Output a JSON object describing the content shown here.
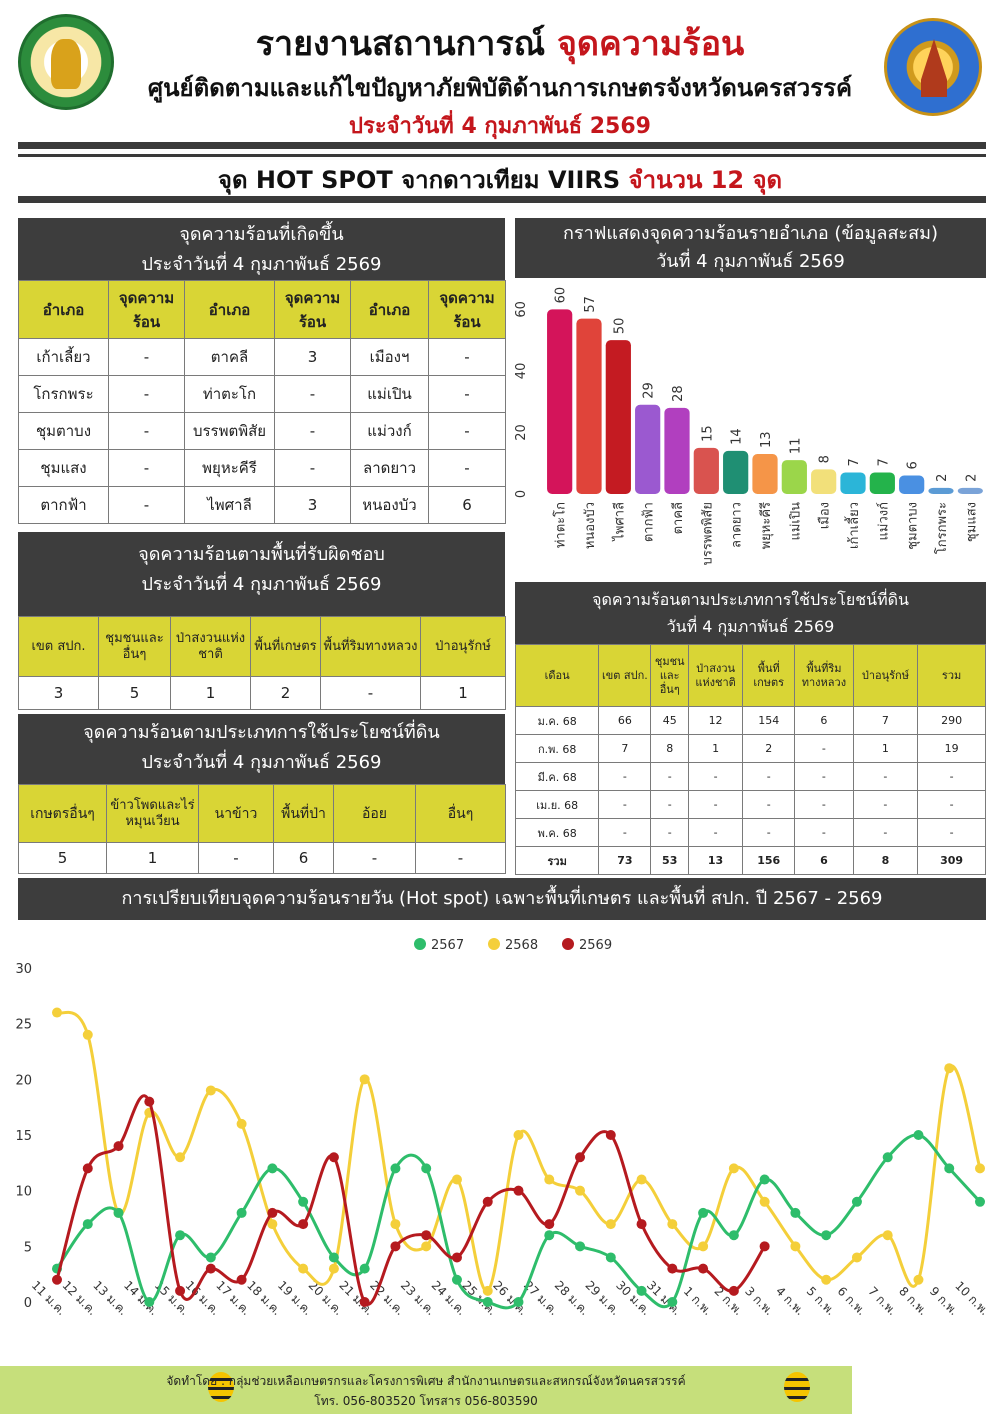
{
  "header": {
    "title_main": "รายงานสถานการณ์ ",
    "title_red": "จุดความร้อน",
    "subtitle": "ศูนย์ติดตามและแก้ไขปัญหาภัยพิบัติด้านการเกษตรจังหวัดนครสวรรค์",
    "date_line": "ประจำวันที่ 4 กุมภาพันธ์ 2569",
    "banner_main": "จุด HOT SPOT จากดาวเทียม VIIRS ",
    "banner_red": "จำนวน 12 จุด"
  },
  "colors": {
    "section_header": "#3d3d3d",
    "table_header": "#d9d535",
    "accent_red": "#c4161c",
    "footer": "#c6df7b"
  },
  "district_table": {
    "title_line1": "จุดความร้อนที่เกิดขึ้น",
    "title_line2": "ประจำวันที่ 4 กุมภาพันธ์ 2569",
    "headers": [
      "อำเภอ",
      "จุดความร้อน",
      "อำเภอ",
      "จุดความร้อน",
      "อำเภอ",
      "จุดความร้อน"
    ],
    "rows": [
      [
        "เก้าเลี้ยว",
        "-",
        "ตาคลี",
        "3",
        "เมืองฯ",
        "-"
      ],
      [
        "โกรกพระ",
        "-",
        "ท่าตะโก",
        "-",
        "แม่เปิน",
        "-"
      ],
      [
        "ชุมตาบง",
        "-",
        "บรรพตพิสัย",
        "-",
        "แม่วงก์",
        "-"
      ],
      [
        "ชุมแสง",
        "-",
        "พยุหะคีรี",
        "-",
        "ลาดยาว",
        "-"
      ],
      [
        "ตากฟ้า",
        "-",
        "ไพศาลี",
        "3",
        "หนองบัว",
        "6"
      ]
    ]
  },
  "area_table": {
    "title_line1": "จุดความร้อนตามพื้นที่รับผิดชอบ",
    "title_line2": "ประจำวันที่ 4 กุมภาพันธ์ 2569",
    "headers": [
      "เขต สปก.",
      "ชุมชนและอื่นๆ",
      "ป่าสงวนแห่งชาติ",
      "พื้นที่เกษตร",
      "พื้นที่ริมทางหลวง",
      "ป่าอนุรักษ์"
    ],
    "values": [
      "3",
      "5",
      "1",
      "2",
      "-",
      "1"
    ]
  },
  "landuse_table": {
    "title_line1": "จุดความร้อนตามประเภทการใช้ประโยชน์ที่ดิน",
    "title_line2": "ประจำวันที่ 4 กุมภาพันธ์ 2569",
    "headers": [
      "เกษตรอื่นๆ",
      "ข้าวโพดและไร่หมุนเวียน",
      "นาข้าว",
      "พื้นที่ป่า",
      "อ้อย",
      "อื่นๆ"
    ],
    "values": [
      "5",
      "1",
      "-",
      "6",
      "-",
      "-"
    ]
  },
  "bar_title": {
    "line1": "กราฟแสดงจุดความร้อนรายอำเภอ (ข้อมูลสะสม)",
    "line2": "วันที่ 4 กุมภาพันธ์ 2569"
  },
  "monthly_table": {
    "title_line1": "จุดความร้อนตามประเภทการใช้ประโยชน์ที่ดิน",
    "title_line2": "วันที่ 4 กุมภาพันธ์  2569",
    "headers": [
      "เดือน",
      "เขต สปก.",
      "ชุมชนและอื่นๆ",
      "ป่าสงวนแห่งชาติ",
      "พื้นที่เกษตร",
      "พื้นที่ริมทางหลวง",
      "ป่าอนุรักษ์",
      "รวม"
    ],
    "rows": [
      [
        "ม.ค. 68",
        "66",
        "45",
        "12",
        "154",
        "6",
        "7",
        "290"
      ],
      [
        "ก.พ. 68",
        "7",
        "8",
        "1",
        "2",
        "-",
        "1",
        "19"
      ],
      [
        "มี.ค. 68",
        "-",
        "-",
        "-",
        "-",
        "-",
        "-",
        "-"
      ],
      [
        "เม.ย. 68",
        "-",
        "-",
        "-",
        "-",
        "-",
        "-",
        "-"
      ],
      [
        "พ.ค. 68",
        "-",
        "-",
        "-",
        "-",
        "-",
        "-",
        "-"
      ]
    ],
    "total": [
      "รวม",
      "73",
      "53",
      "13",
      "156",
      "6",
      "8",
      "309"
    ]
  },
  "line_title": "การเปรียบเทียบจุดความร้อนรายวัน (Hot spot)  เฉพาะพื้นที่เกษตร และพื้นที่ สปก. ปี 2567 - 2569",
  "footer": {
    "line1": "จัดทำโดย : กลุ่มช่วยเหลือเกษตรกรและโครงการพิเศษ สำนักงานเกษตรและสหกรณ์จังหวัดนครสวรรค์",
    "line2": "โทร. 056-803520 โทรสาร 056-803590"
  },
  "chart_data": [
    {
      "type": "bar",
      "title": "กราฟแสดงจุดความร้อนรายอำเภอ (ข้อมูลสะสม)",
      "categories": [
        "ท่าตะโก",
        "หนองบัว",
        "ไพศาลี",
        "ตากฟ้า",
        "ตาคลี",
        "บรรพตพิสัย",
        "ลาดยาว",
        "พยุหะคีรี",
        "แม่เปิน",
        "เมือง",
        "เก้าเลี้ยว",
        "แม่วงก์",
        "ชุมตาบง",
        "โกรกพระ",
        "ชุมแสง"
      ],
      "values": [
        60,
        57,
        50,
        29,
        28,
        15,
        14,
        13,
        11,
        8,
        7,
        7,
        6,
        2,
        2
      ],
      "colors": [
        "#d4145a",
        "#e0443a",
        "#c41b22",
        "#9b59d0",
        "#b13fbf",
        "#d9534f",
        "#1f8f73",
        "#f59548",
        "#9bd64a",
        "#f2e07a",
        "#2bb5d8",
        "#24b34b",
        "#4a90e2",
        "#5b9bd5",
        "#7aa3d8"
      ],
      "ylim": [
        0,
        65
      ],
      "yticks": [
        0,
        20,
        40,
        60
      ],
      "grid": false
    },
    {
      "type": "line",
      "title": "การเปรียบเทียบจุดความร้อนรายวัน (Hot spot)  เฉพาะพื้นที่เกษตร และพื้นที่ สปก. ปี 2567 - 2569",
      "x": [
        "11 ม.ค.",
        "12 ม.ค.",
        "13 ม.ค.",
        "14 ม.ค.",
        "15 ม.ค.",
        "16 ม.ค.",
        "17 ม.ค.",
        "18 ม.ค.",
        "19 ม.ค.",
        "20 ม.ค.",
        "21 ม.ค.",
        "22 ม.ค.",
        "23 ม.ค.",
        "24 ม.ค.",
        "25 ม.ค.",
        "26 ม.ค.",
        "27 ม.ค.",
        "28 ม.ค.",
        "29 ม.ค.",
        "30 ม.ค.",
        "31 ม.ค.",
        "1 ก.พ.",
        "2 ก.พ.",
        "3 ก.พ.",
        "4 ก.พ.",
        "5 ก.พ.",
        "6 ก.พ.",
        "7 ก.พ.",
        "8 ก.พ.",
        "9 ก.พ.",
        "10 ก.พ."
      ],
      "ylim": [
        0,
        30
      ],
      "yticks": [
        0,
        5,
        10,
        15,
        20,
        25,
        30
      ],
      "legend": "top-center",
      "series": [
        {
          "name": "2567",
          "color": "#2ebd6b",
          "values": [
            3,
            7,
            8,
            0,
            6,
            4,
            8,
            12,
            9,
            4,
            3,
            12,
            12,
            2,
            0,
            0,
            6,
            5,
            4,
            1,
            0,
            8,
            6,
            11,
            8,
            6,
            9,
            13,
            15,
            12,
            9
          ]
        },
        {
          "name": "2568",
          "color": "#f4cf3a",
          "values": [
            26,
            24,
            8,
            17,
            13,
            19,
            16,
            7,
            3,
            3,
            20,
            7,
            5,
            11,
            1,
            15,
            11,
            10,
            7,
            11,
            7,
            5,
            12,
            9,
            5,
            2,
            4,
            6,
            2,
            21,
            12
          ]
        },
        {
          "name": "2569",
          "color": "#b51a1f",
          "values": [
            2,
            12,
            14,
            18,
            1,
            3,
            2,
            8,
            7,
            13,
            0,
            5,
            6,
            4,
            9,
            10,
            7,
            13,
            15,
            7,
            3,
            3,
            1,
            5,
            null,
            null,
            null,
            null,
            null,
            null,
            null
          ]
        }
      ]
    }
  ]
}
